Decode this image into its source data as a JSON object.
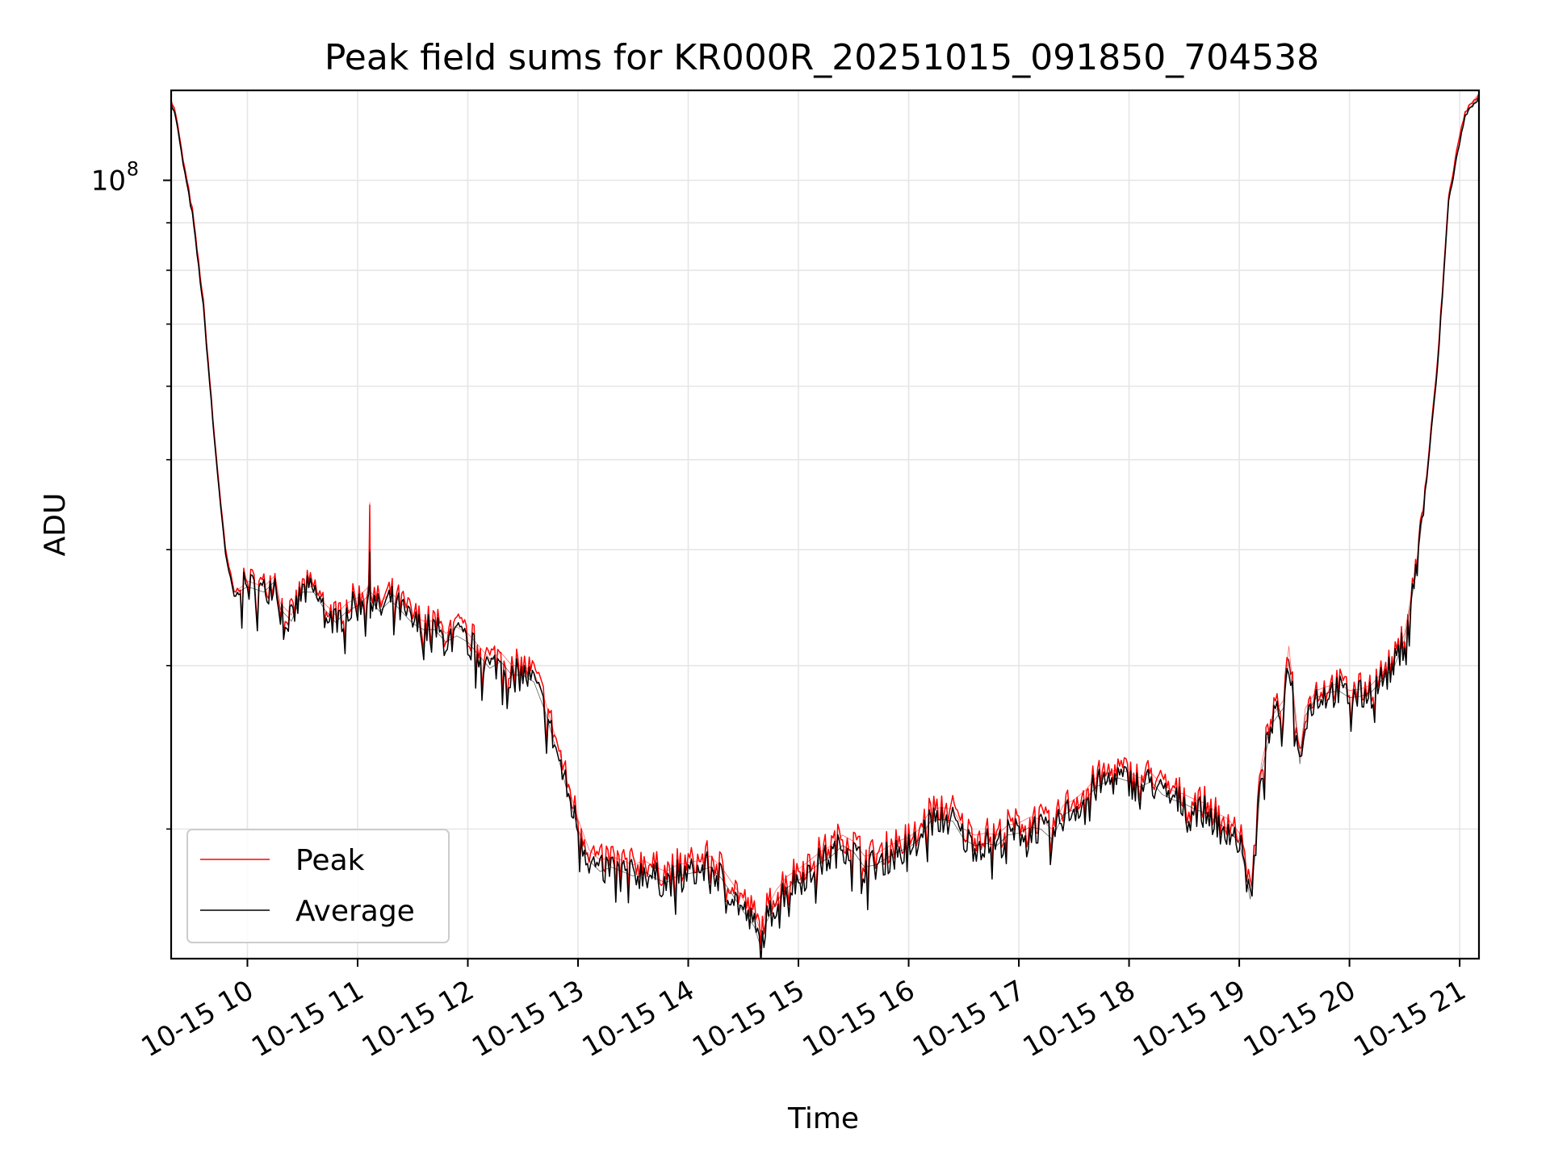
{
  "chart_data": {
    "type": "line",
    "title": "Peak field sums for KR000R_20251015_091850_704538",
    "xlabel": "Time",
    "ylabel": "ADU",
    "yscale": "log",
    "ylim": [
      14500000,
      125000000
    ],
    "xlim": [
      9.308,
      21.175
    ],
    "x_ticks": [
      {
        "value": 10,
        "label": "10-15 10"
      },
      {
        "value": 11,
        "label": "10-15 11"
      },
      {
        "value": 12,
        "label": "10-15 12"
      },
      {
        "value": 13,
        "label": "10-15 13"
      },
      {
        "value": 14,
        "label": "10-15 14"
      },
      {
        "value": 15,
        "label": "10-15 15"
      },
      {
        "value": 16,
        "label": "10-15 16"
      },
      {
        "value": 17,
        "label": "10-15 17"
      },
      {
        "value": 18,
        "label": "10-15 18"
      },
      {
        "value": 19,
        "label": "10-15 19"
      },
      {
        "value": 20,
        "label": "10-15 20"
      },
      {
        "value": 21,
        "label": "10-15 21"
      }
    ],
    "y_major_tick": {
      "value": 100000000,
      "base": "10",
      "exp": "8"
    },
    "y_minor_ticks": [
      20000000,
      30000000,
      40000000,
      50000000,
      60000000,
      70000000,
      80000000,
      90000000
    ],
    "grid": true,
    "legend_position": "lower-left",
    "series": [
      {
        "name": "Peak",
        "color": "#ff0000",
        "x": [
          9.31,
          9.35,
          9.4,
          9.45,
          9.5,
          9.6,
          9.7,
          9.8,
          9.88,
          9.95,
          10.0,
          10.15,
          10.25,
          10.3,
          10.4,
          10.5,
          10.6,
          10.7,
          10.8,
          10.9,
          11.0,
          11.1,
          11.11,
          11.12,
          11.2,
          11.3,
          11.4,
          11.5,
          11.6,
          11.7,
          11.8,
          11.9,
          12.0,
          12.1,
          12.2,
          12.3,
          12.4,
          12.5,
          12.6,
          12.7,
          12.8,
          12.9,
          13.0,
          13.1,
          13.2,
          13.3,
          13.4,
          13.5,
          13.6,
          13.7,
          13.8,
          13.9,
          14.0,
          14.1,
          14.2,
          14.3,
          14.4,
          14.5,
          14.6,
          14.66,
          14.7,
          14.8,
          14.9,
          15.0,
          15.1,
          15.2,
          15.3,
          15.4,
          15.5,
          15.6,
          15.7,
          15.8,
          15.9,
          16.0,
          16.1,
          16.2,
          16.3,
          16.4,
          16.5,
          16.6,
          16.7,
          16.8,
          16.9,
          17.0,
          17.1,
          17.2,
          17.3,
          17.4,
          17.5,
          17.6,
          17.7,
          17.8,
          17.9,
          18.0,
          18.1,
          18.2,
          18.3,
          18.4,
          18.5,
          18.6,
          18.7,
          18.8,
          18.9,
          19.0,
          19.05,
          19.1,
          19.15,
          19.2,
          19.3,
          19.4,
          19.45,
          19.5,
          19.55,
          19.6,
          19.7,
          19.8,
          19.9,
          20.0,
          20.1,
          20.2,
          20.3,
          20.4,
          20.5,
          20.6,
          20.7,
          20.8,
          20.9,
          21.0,
          21.05,
          21.1,
          21.175
        ],
        "values": [
          122000000,
          118000000,
          108000000,
          100000000,
          93000000,
          74000000,
          53000000,
          40000000,
          36000000,
          36500000,
          37000000,
          36500000,
          37500000,
          35000000,
          34000000,
          36500000,
          36500000,
          35000000,
          34000000,
          35000000,
          35500000,
          36500000,
          45000000,
          36000000,
          35000000,
          36000000,
          35000000,
          34000000,
          33500000,
          33500000,
          32500000,
          33000000,
          32500000,
          31500000,
          30500000,
          31000000,
          30000000,
          30000000,
          29500000,
          27500000,
          25000000,
          22500000,
          20500000,
          19000000,
          18500000,
          18700000,
          18500000,
          18300000,
          18500000,
          18200000,
          18000000,
          18300000,
          18400000,
          18500000,
          18700000,
          18200000,
          17500000,
          16800000,
          16200000,
          15500000,
          16300000,
          17200000,
          17800000,
          18100000,
          18500000,
          18900000,
          19200000,
          19700000,
          19400000,
          18700000,
          18800000,
          19100000,
          19400000,
          19600000,
          20000000,
          21000000,
          21100000,
          21000000,
          20000000,
          19700000,
          19800000,
          19700000,
          20200000,
          20300000,
          20600000,
          20500000,
          20000000,
          21200000,
          21500000,
          22000000,
          22700000,
          23000000,
          23200000,
          23000000,
          22700000,
          23000000,
          22300000,
          22000000,
          21800000,
          21500000,
          21300000,
          20800000,
          20500000,
          19800000,
          18700000,
          17200000,
          19500000,
          23500000,
          26500000,
          27500000,
          31500000,
          27500000,
          24000000,
          27000000,
          28200000,
          28500000,
          28700000,
          28200000,
          28300000,
          28600000,
          29500000,
          30300000,
          32500000,
          38000000,
          48000000,
          64000000,
          96000000,
          112000000,
          118000000,
          121000000,
          124000000
        ]
      },
      {
        "name": "Average",
        "color": "#000000",
        "x": [
          9.31,
          9.35,
          9.4,
          9.45,
          9.5,
          9.6,
          9.7,
          9.8,
          9.88,
          9.95,
          10.0,
          10.15,
          10.25,
          10.3,
          10.4,
          10.5,
          10.6,
          10.7,
          10.8,
          10.9,
          11.0,
          11.1,
          11.11,
          11.12,
          11.2,
          11.3,
          11.4,
          11.5,
          11.6,
          11.7,
          11.8,
          11.9,
          12.0,
          12.1,
          12.2,
          12.3,
          12.4,
          12.5,
          12.6,
          12.7,
          12.8,
          12.9,
          13.0,
          13.1,
          13.2,
          13.3,
          13.4,
          13.5,
          13.6,
          13.7,
          13.8,
          13.9,
          14.0,
          14.1,
          14.2,
          14.3,
          14.4,
          14.5,
          14.6,
          14.66,
          14.7,
          14.8,
          14.9,
          15.0,
          15.1,
          15.2,
          15.3,
          15.4,
          15.5,
          15.6,
          15.7,
          15.8,
          15.9,
          16.0,
          16.1,
          16.2,
          16.3,
          16.4,
          16.5,
          16.6,
          16.7,
          16.8,
          16.9,
          17.0,
          17.1,
          17.2,
          17.3,
          17.4,
          17.5,
          17.6,
          17.7,
          17.8,
          17.9,
          18.0,
          18.1,
          18.2,
          18.3,
          18.4,
          18.5,
          18.6,
          18.7,
          18.8,
          18.9,
          19.0,
          19.05,
          19.1,
          19.15,
          19.2,
          19.3,
          19.4,
          19.45,
          19.5,
          19.55,
          19.6,
          19.7,
          19.8,
          19.9,
          20.0,
          20.1,
          20.2,
          20.3,
          20.4,
          20.5,
          20.6,
          20.7,
          20.8,
          20.9,
          21.0,
          21.05,
          21.1,
          21.175
        ],
        "values": [
          121000000,
          117000000,
          107000000,
          99000000,
          92000000,
          73000000,
          52500000,
          39500000,
          35600000,
          36200000,
          36500000,
          36000000,
          37000000,
          34500000,
          33500000,
          36000000,
          36000000,
          34500000,
          33400000,
          34300000,
          34800000,
          35700000,
          40000000,
          35300000,
          34300000,
          35300000,
          34300000,
          33300000,
          32800000,
          32800000,
          31800000,
          32300000,
          31800000,
          30800000,
          29800000,
          30300000,
          29300000,
          29300000,
          28800000,
          26800000,
          24400000,
          22000000,
          20000000,
          18500000,
          18000000,
          18200000,
          18000000,
          17800000,
          18000000,
          17700000,
          17500000,
          17800000,
          17900000,
          18000000,
          18200000,
          17700000,
          17000000,
          16300000,
          15700000,
          14900000,
          15800000,
          16700000,
          17300000,
          17600000,
          18000000,
          18400000,
          18700000,
          19200000,
          18900000,
          18200000,
          18300000,
          18600000,
          18900000,
          19100000,
          19500000,
          20400000,
          20500000,
          20400000,
          19500000,
          19200000,
          19300000,
          19200000,
          19700000,
          19800000,
          20100000,
          20000000,
          19500000,
          20700000,
          21000000,
          21500000,
          22200000,
          22500000,
          22700000,
          22500000,
          22200000,
          22500000,
          21800000,
          21500000,
          21300000,
          21000000,
          20800000,
          20300000,
          20000000,
          19300000,
          18200000,
          16800000,
          19000000,
          23000000,
          26000000,
          27000000,
          30500000,
          27000000,
          23500000,
          26500000,
          27700000,
          28000000,
          28200000,
          27700000,
          27800000,
          28100000,
          29000000,
          29800000,
          32000000,
          37500000,
          47500000,
          63000000,
          95000000,
          110000000,
          117000000,
          120000000,
          123000000
        ]
      }
    ]
  }
}
